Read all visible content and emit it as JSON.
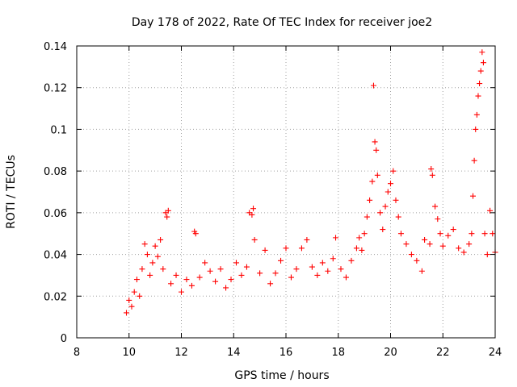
{
  "chart_data": {
    "type": "scatter",
    "title": "Day 178 of 2022, Rate Of TEC Index for receiver joe2",
    "xlabel": "GPS time / hours",
    "ylabel": "ROTI / TECUs",
    "xlim": [
      8,
      24
    ],
    "ylim": [
      0,
      0.14
    ],
    "xticks": [
      "8",
      "10",
      "12",
      "14",
      "16",
      "18",
      "20",
      "22",
      "24"
    ],
    "yticks": [
      "0",
      "0.02",
      "0.04",
      "0.06",
      "0.08",
      "0.1",
      "0.12",
      "0.14"
    ],
    "grid": true,
    "marker": "+",
    "color": "#ff0000",
    "series": [
      {
        "name": "ROTI",
        "points": [
          [
            9.9,
            0.012
          ],
          [
            10.0,
            0.018
          ],
          [
            10.1,
            0.015
          ],
          [
            10.2,
            0.022
          ],
          [
            10.3,
            0.028
          ],
          [
            10.4,
            0.02
          ],
          [
            10.5,
            0.033
          ],
          [
            10.6,
            0.045
          ],
          [
            10.7,
            0.04
          ],
          [
            10.8,
            0.03
          ],
          [
            10.9,
            0.036
          ],
          [
            11.0,
            0.044
          ],
          [
            11.1,
            0.039
          ],
          [
            11.2,
            0.047
          ],
          [
            11.3,
            0.033
          ],
          [
            11.4,
            0.06
          ],
          [
            11.45,
            0.058
          ],
          [
            11.5,
            0.061
          ],
          [
            11.6,
            0.026
          ],
          [
            11.8,
            0.03
          ],
          [
            12.0,
            0.022
          ],
          [
            12.2,
            0.028
          ],
          [
            12.4,
            0.025
          ],
          [
            12.5,
            0.051
          ],
          [
            12.55,
            0.05
          ],
          [
            12.7,
            0.029
          ],
          [
            12.9,
            0.036
          ],
          [
            13.1,
            0.032
          ],
          [
            13.3,
            0.027
          ],
          [
            13.5,
            0.033
          ],
          [
            13.7,
            0.024
          ],
          [
            13.9,
            0.028
          ],
          [
            14.1,
            0.036
          ],
          [
            14.3,
            0.03
          ],
          [
            14.5,
            0.034
          ],
          [
            14.6,
            0.06
          ],
          [
            14.7,
            0.059
          ],
          [
            14.75,
            0.062
          ],
          [
            14.8,
            0.047
          ],
          [
            15.0,
            0.031
          ],
          [
            15.2,
            0.042
          ],
          [
            15.4,
            0.026
          ],
          [
            15.6,
            0.031
          ],
          [
            15.8,
            0.037
          ],
          [
            16.0,
            0.043
          ],
          [
            16.2,
            0.029
          ],
          [
            16.4,
            0.033
          ],
          [
            16.6,
            0.043
          ],
          [
            16.8,
            0.047
          ],
          [
            17.0,
            0.034
          ],
          [
            17.2,
            0.03
          ],
          [
            17.4,
            0.036
          ],
          [
            17.6,
            0.032
          ],
          [
            17.8,
            0.038
          ],
          [
            17.9,
            0.048
          ],
          [
            18.1,
            0.033
          ],
          [
            18.3,
            0.029
          ],
          [
            18.5,
            0.037
          ],
          [
            18.7,
            0.043
          ],
          [
            18.8,
            0.048
          ],
          [
            18.9,
            0.042
          ],
          [
            19.0,
            0.05
          ],
          [
            19.1,
            0.058
          ],
          [
            19.2,
            0.066
          ],
          [
            19.3,
            0.075
          ],
          [
            19.35,
            0.121
          ],
          [
            19.4,
            0.094
          ],
          [
            19.45,
            0.09
          ],
          [
            19.5,
            0.078
          ],
          [
            19.6,
            0.06
          ],
          [
            19.7,
            0.052
          ],
          [
            19.8,
            0.063
          ],
          [
            19.9,
            0.07
          ],
          [
            20.0,
            0.074
          ],
          [
            20.1,
            0.08
          ],
          [
            20.2,
            0.066
          ],
          [
            20.3,
            0.058
          ],
          [
            20.4,
            0.05
          ],
          [
            20.6,
            0.045
          ],
          [
            20.8,
            0.04
          ],
          [
            21.0,
            0.037
          ],
          [
            21.2,
            0.032
          ],
          [
            21.3,
            0.047
          ],
          [
            21.5,
            0.045
          ],
          [
            21.55,
            0.081
          ],
          [
            21.6,
            0.078
          ],
          [
            21.7,
            0.063
          ],
          [
            21.8,
            0.057
          ],
          [
            21.9,
            0.05
          ],
          [
            22.0,
            0.044
          ],
          [
            22.2,
            0.049
          ],
          [
            22.4,
            0.052
          ],
          [
            22.6,
            0.043
          ],
          [
            22.8,
            0.041
          ],
          [
            23.0,
            0.045
          ],
          [
            23.1,
            0.05
          ],
          [
            23.15,
            0.068
          ],
          [
            23.2,
            0.085
          ],
          [
            23.25,
            0.1
          ],
          [
            23.3,
            0.107
          ],
          [
            23.35,
            0.116
          ],
          [
            23.4,
            0.122
          ],
          [
            23.45,
            0.128
          ],
          [
            23.5,
            0.137
          ],
          [
            23.55,
            0.132
          ],
          [
            23.6,
            0.05
          ],
          [
            23.7,
            0.04
          ],
          [
            23.8,
            0.061
          ],
          [
            23.9,
            0.05
          ],
          [
            24.0,
            0.041
          ]
        ]
      }
    ]
  }
}
